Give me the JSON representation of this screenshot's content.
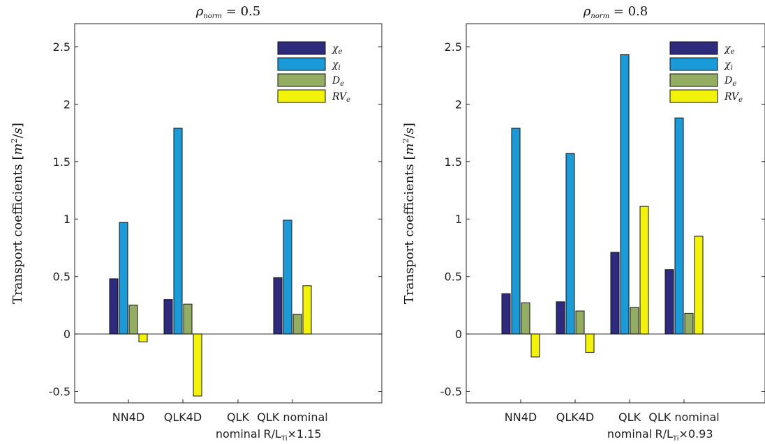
{
  "chart_data": [
    {
      "type": "bar",
      "title_parts": {
        "symbol": "ρ",
        "sub": "norm",
        "rest": " = 0.5"
      },
      "ylabel_parts": {
        "pre": "Transport coefficients [",
        "base": "m",
        "sup": "2",
        "post": "/",
        "unit2": "s",
        "close": "]"
      },
      "ylim": [
        -0.6,
        2.7
      ],
      "yticks": [
        -0.5,
        0,
        0.5,
        1,
        1.5,
        2,
        2.5
      ],
      "ytick_labels": [
        "-0.5",
        "0",
        "0.5",
        "1",
        "1.5",
        "2",
        "2.5"
      ],
      "categories": [
        {
          "line1": "NN4D",
          "line2": ""
        },
        {
          "line1": "QLK4D",
          "line2": ""
        },
        {
          "line1": "QLK",
          "line2": "nominal"
        },
        {
          "line1": "QLK nominal",
          "line2_pre": "R/L",
          "line2_sub": "Ti",
          "line2_post": "×1.15"
        }
      ],
      "series": [
        {
          "name_base": "χ",
          "name_sub": "e",
          "color": "#2e2a7e",
          "values": [
            0.48,
            0.3,
            0.0,
            0.49
          ]
        },
        {
          "name_base": "χ",
          "name_sub": "i",
          "color": "#1a9ad6",
          "values": [
            0.97,
            1.79,
            0.0,
            0.99
          ]
        },
        {
          "name_base": "D",
          "name_sub": "e",
          "color": "#93ad62",
          "values": [
            0.25,
            0.26,
            0.0,
            0.17
          ]
        },
        {
          "name_base": "RV",
          "name_sub": "e",
          "color": "#f2f20a",
          "values": [
            -0.07,
            -0.54,
            0.0,
            0.42
          ]
        }
      ],
      "legend_position": "top-right",
      "grid": false
    },
    {
      "type": "bar",
      "title_parts": {
        "symbol": "ρ",
        "sub": "norm",
        "rest": " = 0.8"
      },
      "ylabel_parts": {
        "pre": "Transport coefficients [",
        "base": "m",
        "sup": "2",
        "post": "/",
        "unit2": "s",
        "close": "]"
      },
      "ylim": [
        -0.6,
        2.7
      ],
      "yticks": [
        -0.5,
        0,
        0.5,
        1,
        1.5,
        2,
        2.5
      ],
      "ytick_labels": [
        "-0.5",
        "0",
        "0.5",
        "1",
        "1.5",
        "2",
        "2.5"
      ],
      "categories": [
        {
          "line1": "NN4D",
          "line2": ""
        },
        {
          "line1": "QLK4D",
          "line2": ""
        },
        {
          "line1": "QLK",
          "line2": "nominal"
        },
        {
          "line1": "QLK nominal",
          "line2_pre": "R/L",
          "line2_sub": "Ti",
          "line2_post": "×0.93"
        }
      ],
      "series": [
        {
          "name_base": "χ",
          "name_sub": "e",
          "color": "#2e2a7e",
          "values": [
            0.35,
            0.28,
            0.71,
            0.56
          ]
        },
        {
          "name_base": "χ",
          "name_sub": "i",
          "color": "#1a9ad6",
          "values": [
            1.79,
            1.57,
            2.43,
            1.88
          ]
        },
        {
          "name_base": "D",
          "name_sub": "e",
          "color": "#93ad62",
          "values": [
            0.27,
            0.2,
            0.23,
            0.18
          ]
        },
        {
          "name_base": "RV",
          "name_sub": "e",
          "color": "#f2f20a",
          "values": [
            -0.2,
            -0.16,
            1.11,
            0.85
          ]
        }
      ],
      "legend_position": "top-right",
      "grid": false
    }
  ]
}
